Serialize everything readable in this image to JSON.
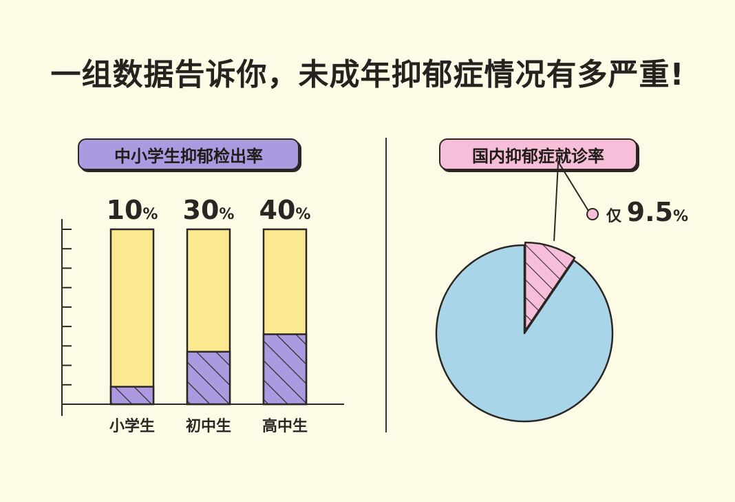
{
  "page": {
    "title": "一组数据告诉你，未成年抑郁症情况有多严重!"
  },
  "colors": {
    "background": "#fdfbe5",
    "bar_fill": "#fbe992",
    "bar_value": "#ab9ae0",
    "pie_main": "#a8d6e8",
    "pie_slice": "#f6bed8",
    "outline": "#2b2624"
  },
  "chart_data": [
    {
      "type": "bar",
      "title": "中小学生抑郁检出率",
      "categories": [
        "小学生",
        "初中生",
        "高中生"
      ],
      "values": [
        10,
        30,
        40
      ],
      "value_labels": [
        {
          "number": "10",
          "unit": "%"
        },
        {
          "number": "30",
          "unit": "%"
        },
        {
          "number": "40",
          "unit": "%"
        }
      ],
      "ylim": [
        0,
        100
      ],
      "grid": false
    },
    {
      "type": "pie",
      "title": "国内抑郁症就诊率",
      "slices": [
        {
          "label": "仅",
          "value": 9.5,
          "highlight": true
        },
        {
          "label": "",
          "value": 90.5,
          "highlight": false
        }
      ],
      "annotation": {
        "prefix": "仅",
        "number": "9.5",
        "unit": "%"
      }
    }
  ]
}
